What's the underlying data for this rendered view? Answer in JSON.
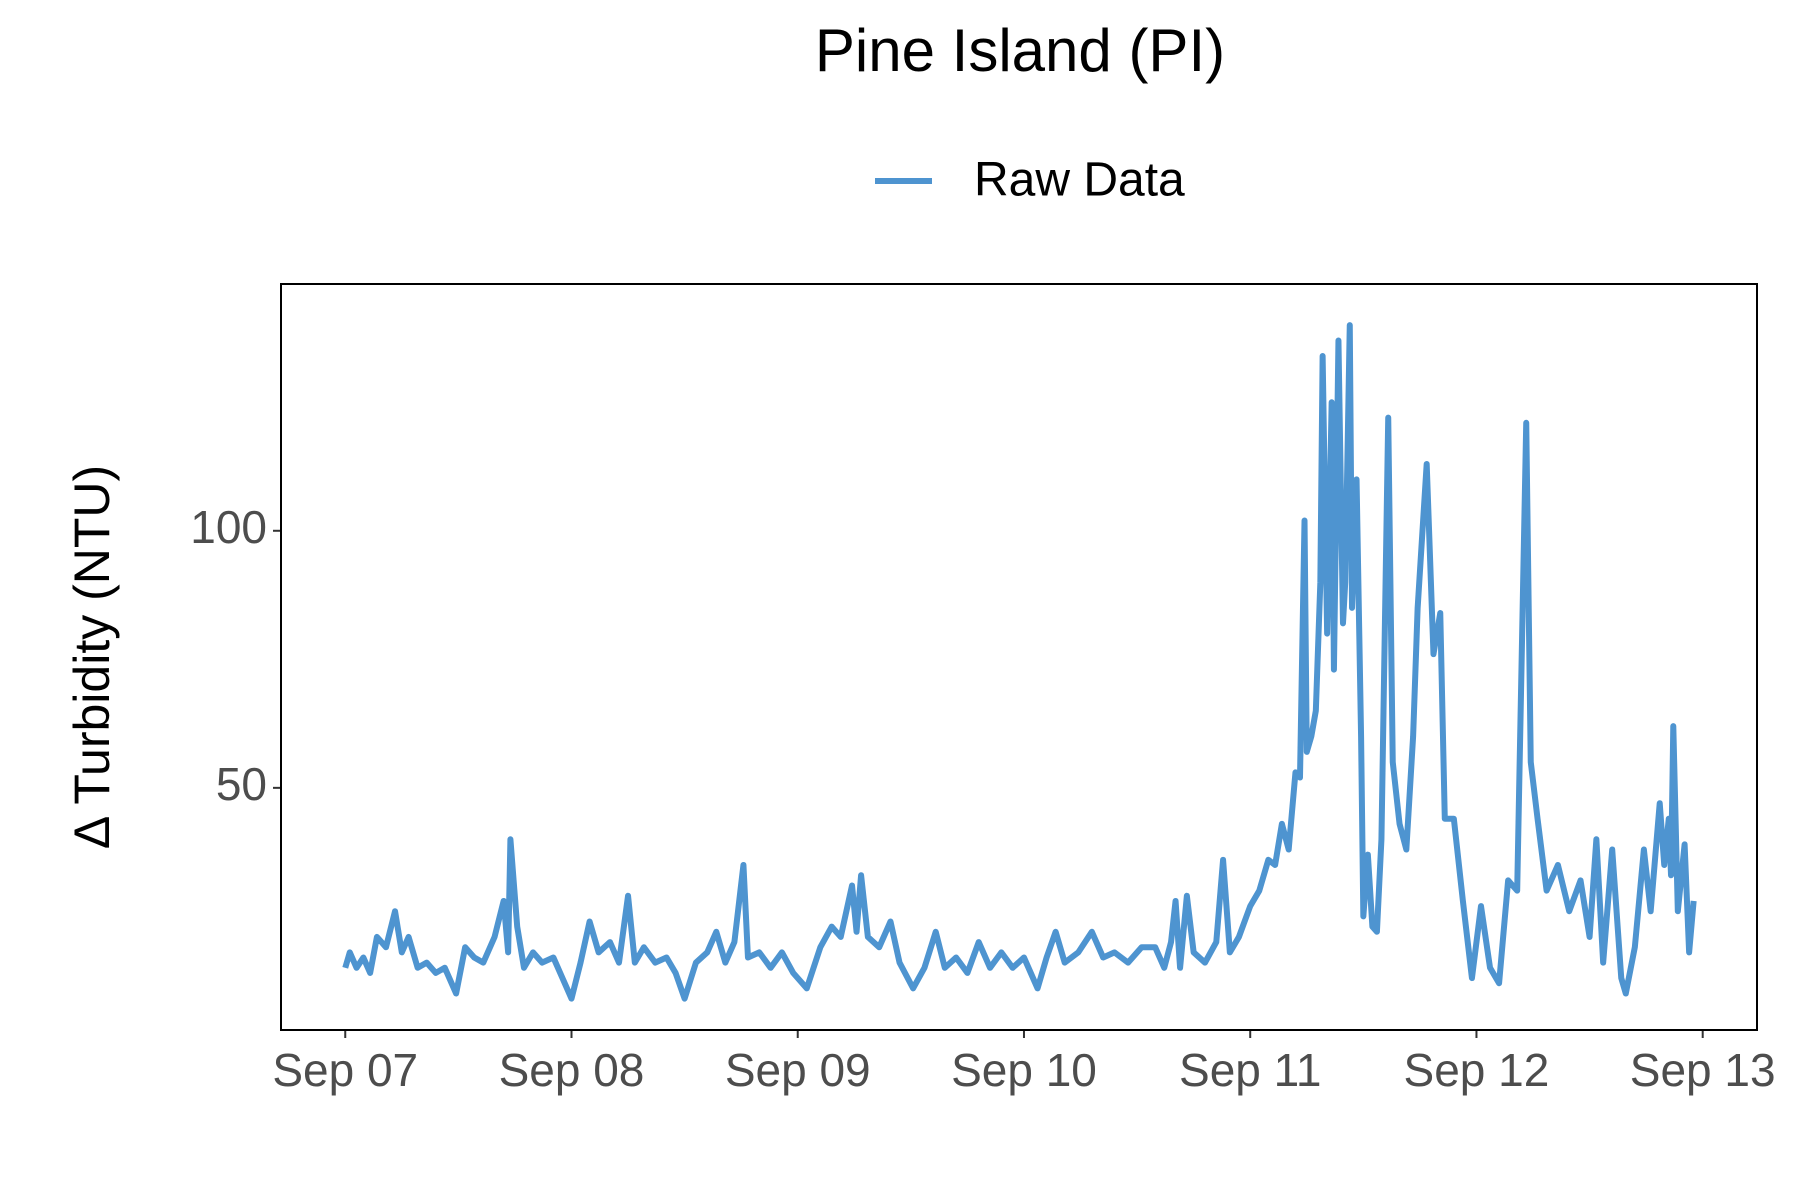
{
  "chart_data": {
    "type": "line",
    "title": "Pine Island (PI)",
    "y_label": "Δ Turbidity (NTU)",
    "legend": "top",
    "x": [
      0.0,
      0.02,
      0.05,
      0.08,
      0.11,
      0.14,
      0.18,
      0.22,
      0.25,
      0.28,
      0.32,
      0.36,
      0.4,
      0.44,
      0.49,
      0.53,
      0.57,
      0.61,
      0.66,
      0.7,
      0.72,
      0.73,
      0.76,
      0.79,
      0.83,
      0.87,
      0.92,
      0.96,
      1.0,
      1.04,
      1.08,
      1.12,
      1.17,
      1.21,
      1.25,
      1.28,
      1.32,
      1.37,
      1.42,
      1.46,
      1.5,
      1.55,
      1.6,
      1.64,
      1.68,
      1.72,
      1.76,
      1.78,
      1.83,
      1.88,
      1.93,
      1.98,
      2.04,
      2.1,
      2.15,
      2.19,
      2.24,
      2.26,
      2.28,
      2.31,
      2.36,
      2.41,
      2.45,
      2.51,
      2.56,
      2.61,
      2.65,
      2.7,
      2.75,
      2.8,
      2.85,
      2.9,
      2.95,
      3.0,
      3.06,
      3.1,
      3.14,
      3.18,
      3.24,
      3.3,
      3.35,
      3.4,
      3.46,
      3.52,
      3.58,
      3.62,
      3.65,
      3.67,
      3.69,
      3.72,
      3.75,
      3.8,
      3.85,
      3.88,
      3.91,
      3.95,
      4.0,
      4.04,
      4.08,
      4.11,
      4.14,
      4.17,
      4.2,
      4.22,
      4.24,
      4.25,
      4.27,
      4.29,
      4.31,
      4.32,
      4.34,
      4.36,
      4.37,
      4.39,
      4.41,
      4.42,
      4.44,
      4.45,
      4.47,
      4.49,
      4.5,
      4.52,
      4.54,
      4.56,
      4.58,
      4.61,
      4.63,
      4.66,
      4.69,
      4.72,
      4.74,
      4.78,
      4.81,
      4.84,
      4.86,
      4.9,
      4.94,
      4.98,
      5.02,
      5.06,
      5.1,
      5.14,
      5.18,
      5.22,
      5.24,
      5.27,
      5.31,
      5.36,
      5.41,
      5.46,
      5.5,
      5.53,
      5.56,
      5.6,
      5.64,
      5.66,
      5.7,
      5.74,
      5.77,
      5.81,
      5.83,
      5.85,
      5.86,
      5.87,
      5.89,
      5.92,
      5.94,
      5.96
    ],
    "series": [
      {
        "name": "Raw Data",
        "color": "#4e94d0",
        "values": [
          15,
          18,
          15,
          17,
          14,
          21,
          19,
          26,
          18,
          21,
          15,
          16,
          14,
          15,
          10,
          19,
          17,
          16,
          21,
          28,
          18,
          40,
          23,
          15,
          18,
          16,
          17,
          13,
          9,
          16,
          24,
          18,
          20,
          16,
          29,
          16,
          19,
          16,
          17,
          14,
          9,
          16,
          18,
          22,
          16,
          20,
          35,
          17,
          18,
          15,
          18,
          14,
          11,
          19,
          23,
          21,
          31,
          22,
          33,
          21,
          19,
          24,
          16,
          11,
          15,
          22,
          15,
          17,
          14,
          20,
          15,
          18,
          15,
          17,
          11,
          17,
          22,
          16,
          18,
          22,
          17,
          18,
          16,
          19,
          19,
          15,
          20,
          28,
          15,
          29,
          18,
          16,
          20,
          36,
          18,
          21,
          27,
          30,
          36,
          35,
          43,
          38,
          53,
          52,
          102,
          57,
          60,
          65,
          90,
          134,
          80,
          125,
          73,
          137,
          82,
          90,
          140,
          85,
          110,
          60,
          25,
          37,
          23,
          22,
          40,
          122,
          55,
          43,
          38,
          60,
          85,
          113,
          76,
          84,
          44,
          44,
          28,
          13,
          27,
          15,
          12,
          32,
          30,
          121,
          55,
          44,
          30,
          35,
          26,
          32,
          21,
          40,
          16,
          38,
          13,
          10,
          19,
          38,
          26,
          47,
          35,
          44,
          33,
          62,
          26,
          39,
          18,
          28
        ]
      }
    ],
    "xlim": [
      -0.284,
      6.24
    ],
    "xticks": [
      {
        "value": 0,
        "label": "Sep 07"
      },
      {
        "value": 1,
        "label": "Sep 08"
      },
      {
        "value": 2,
        "label": "Sep 09"
      },
      {
        "value": 3,
        "label": "Sep 10"
      },
      {
        "value": 4,
        "label": "Sep 11"
      },
      {
        "value": 5,
        "label": "Sep 12"
      },
      {
        "value": 6,
        "label": "Sep 13"
      }
    ],
    "ylim": [
      2.9,
      148
    ],
    "yticks": [
      50,
      100
    ],
    "grid": false
  }
}
